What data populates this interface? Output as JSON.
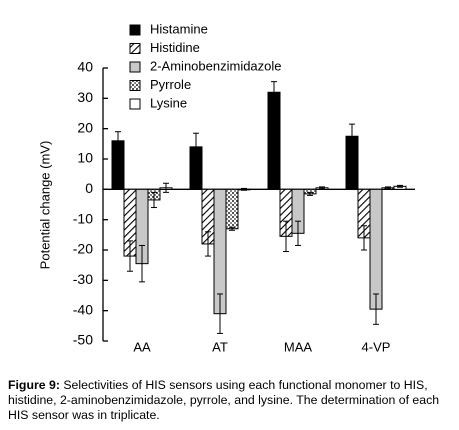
{
  "chart_data": {
    "type": "bar",
    "y_label": "Potential change (mV)",
    "categories": [
      "AA",
      "AT",
      "MAA",
      "4-VP"
    ],
    "series": [
      {
        "name": "Histamine",
        "color": "#000000",
        "pattern": "solid",
        "values": [
          16,
          14,
          32,
          17.5
        ],
        "errors": [
          3,
          4.5,
          3.5,
          4
        ]
      },
      {
        "name": "Histidine",
        "color": "#000000",
        "pattern": "hatch",
        "values": [
          -22,
          -18,
          -15.5,
          -16
        ],
        "errors": [
          5,
          4,
          5,
          4
        ]
      },
      {
        "name": "2-Aminobenzimidazole",
        "color": "#c8c8c8",
        "pattern": "solid",
        "values": [
          -24.5,
          -41,
          -14.5,
          -39.5
        ],
        "errors": [
          6,
          6.5,
          4,
          5
        ]
      },
      {
        "name": "Pyrrole",
        "color": "#000000",
        "pattern": "cross",
        "values": [
          -3.5,
          -13,
          -1.5,
          0.5
        ],
        "errors": [
          2.5,
          0.5,
          0.5,
          0.3
        ]
      },
      {
        "name": "Lysine",
        "color": "#ffffff",
        "pattern": "solid",
        "values": [
          0.5,
          0,
          0.5,
          1
        ],
        "errors": [
          1.5,
          0.3,
          0.3,
          0.3
        ]
      }
    ],
    "ylim": [
      -50,
      40
    ],
    "yticks": [
      40,
      30,
      20,
      10,
      0,
      -10,
      -20,
      -30,
      -40,
      -50
    ],
    "caption_label": "Figure 9:",
    "caption": "Selectivities of HIS sensors using each functional monomer to HIS, histidine, 2-aminobenzimidazole, pyrrole, and lysine. The determination of each HIS sensor was in triplicate."
  }
}
